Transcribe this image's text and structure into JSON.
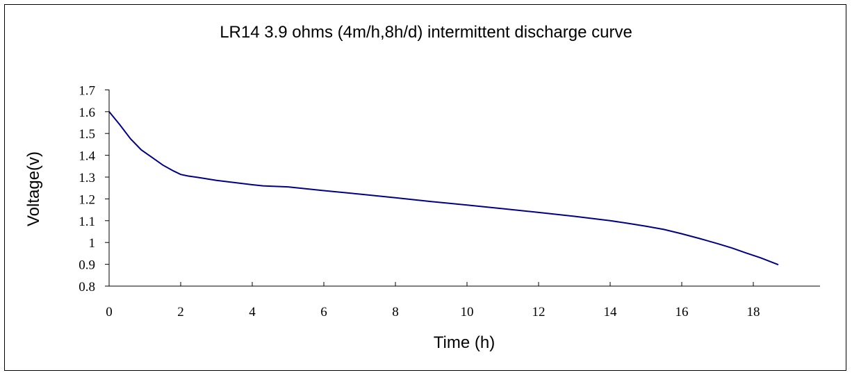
{
  "chart_data": {
    "type": "line",
    "title": "LR14 3.9 ohms (4m/h,8h/d) intermittent discharge curve",
    "xlabel": "Time (h)",
    "ylabel": "Voltage(v)",
    "xlim": [
      0,
      19.5
    ],
    "ylim": [
      0.8,
      1.7
    ],
    "x_ticks": [
      0,
      2,
      4,
      6,
      8,
      10,
      12,
      14,
      16,
      18
    ],
    "y_ticks": [
      0.8,
      0.9,
      1.0,
      1.1,
      1.2,
      1.3,
      1.4,
      1.5,
      1.6,
      1.7
    ],
    "x_tick_labels": [
      "0",
      "2",
      "4",
      "6",
      "8",
      "10",
      "12",
      "14",
      "16",
      "18"
    ],
    "y_tick_labels": [
      "0.8",
      "0.9",
      "1",
      "1.1",
      "1.2",
      "1.3",
      "1.4",
      "1.5",
      "1.6",
      "1.7"
    ],
    "grid": false,
    "legend": "none",
    "color": "#000080",
    "series": [
      {
        "x": [
          0,
          0.3,
          0.6,
          0.9,
          1.2,
          1.5,
          1.8,
          2.0,
          2.2,
          2.5,
          3.0,
          3.5,
          4.0,
          4.3,
          5.0,
          6.0,
          7.0,
          8.0,
          9.0,
          10.0,
          11.0,
          12.0,
          13.0,
          14.0,
          14.5,
          15.0,
          15.5,
          16.0,
          16.5,
          17.0,
          17.4,
          17.8,
          18.2,
          18.7
        ],
        "y": [
          1.6,
          1.54,
          1.475,
          1.425,
          1.39,
          1.355,
          1.328,
          1.312,
          1.305,
          1.298,
          1.285,
          1.275,
          1.265,
          1.26,
          1.255,
          1.238,
          1.222,
          1.205,
          1.188,
          1.172,
          1.155,
          1.138,
          1.12,
          1.1,
          1.088,
          1.075,
          1.06,
          1.04,
          1.018,
          0.995,
          0.975,
          0.952,
          0.93,
          0.898
        ]
      }
    ]
  }
}
